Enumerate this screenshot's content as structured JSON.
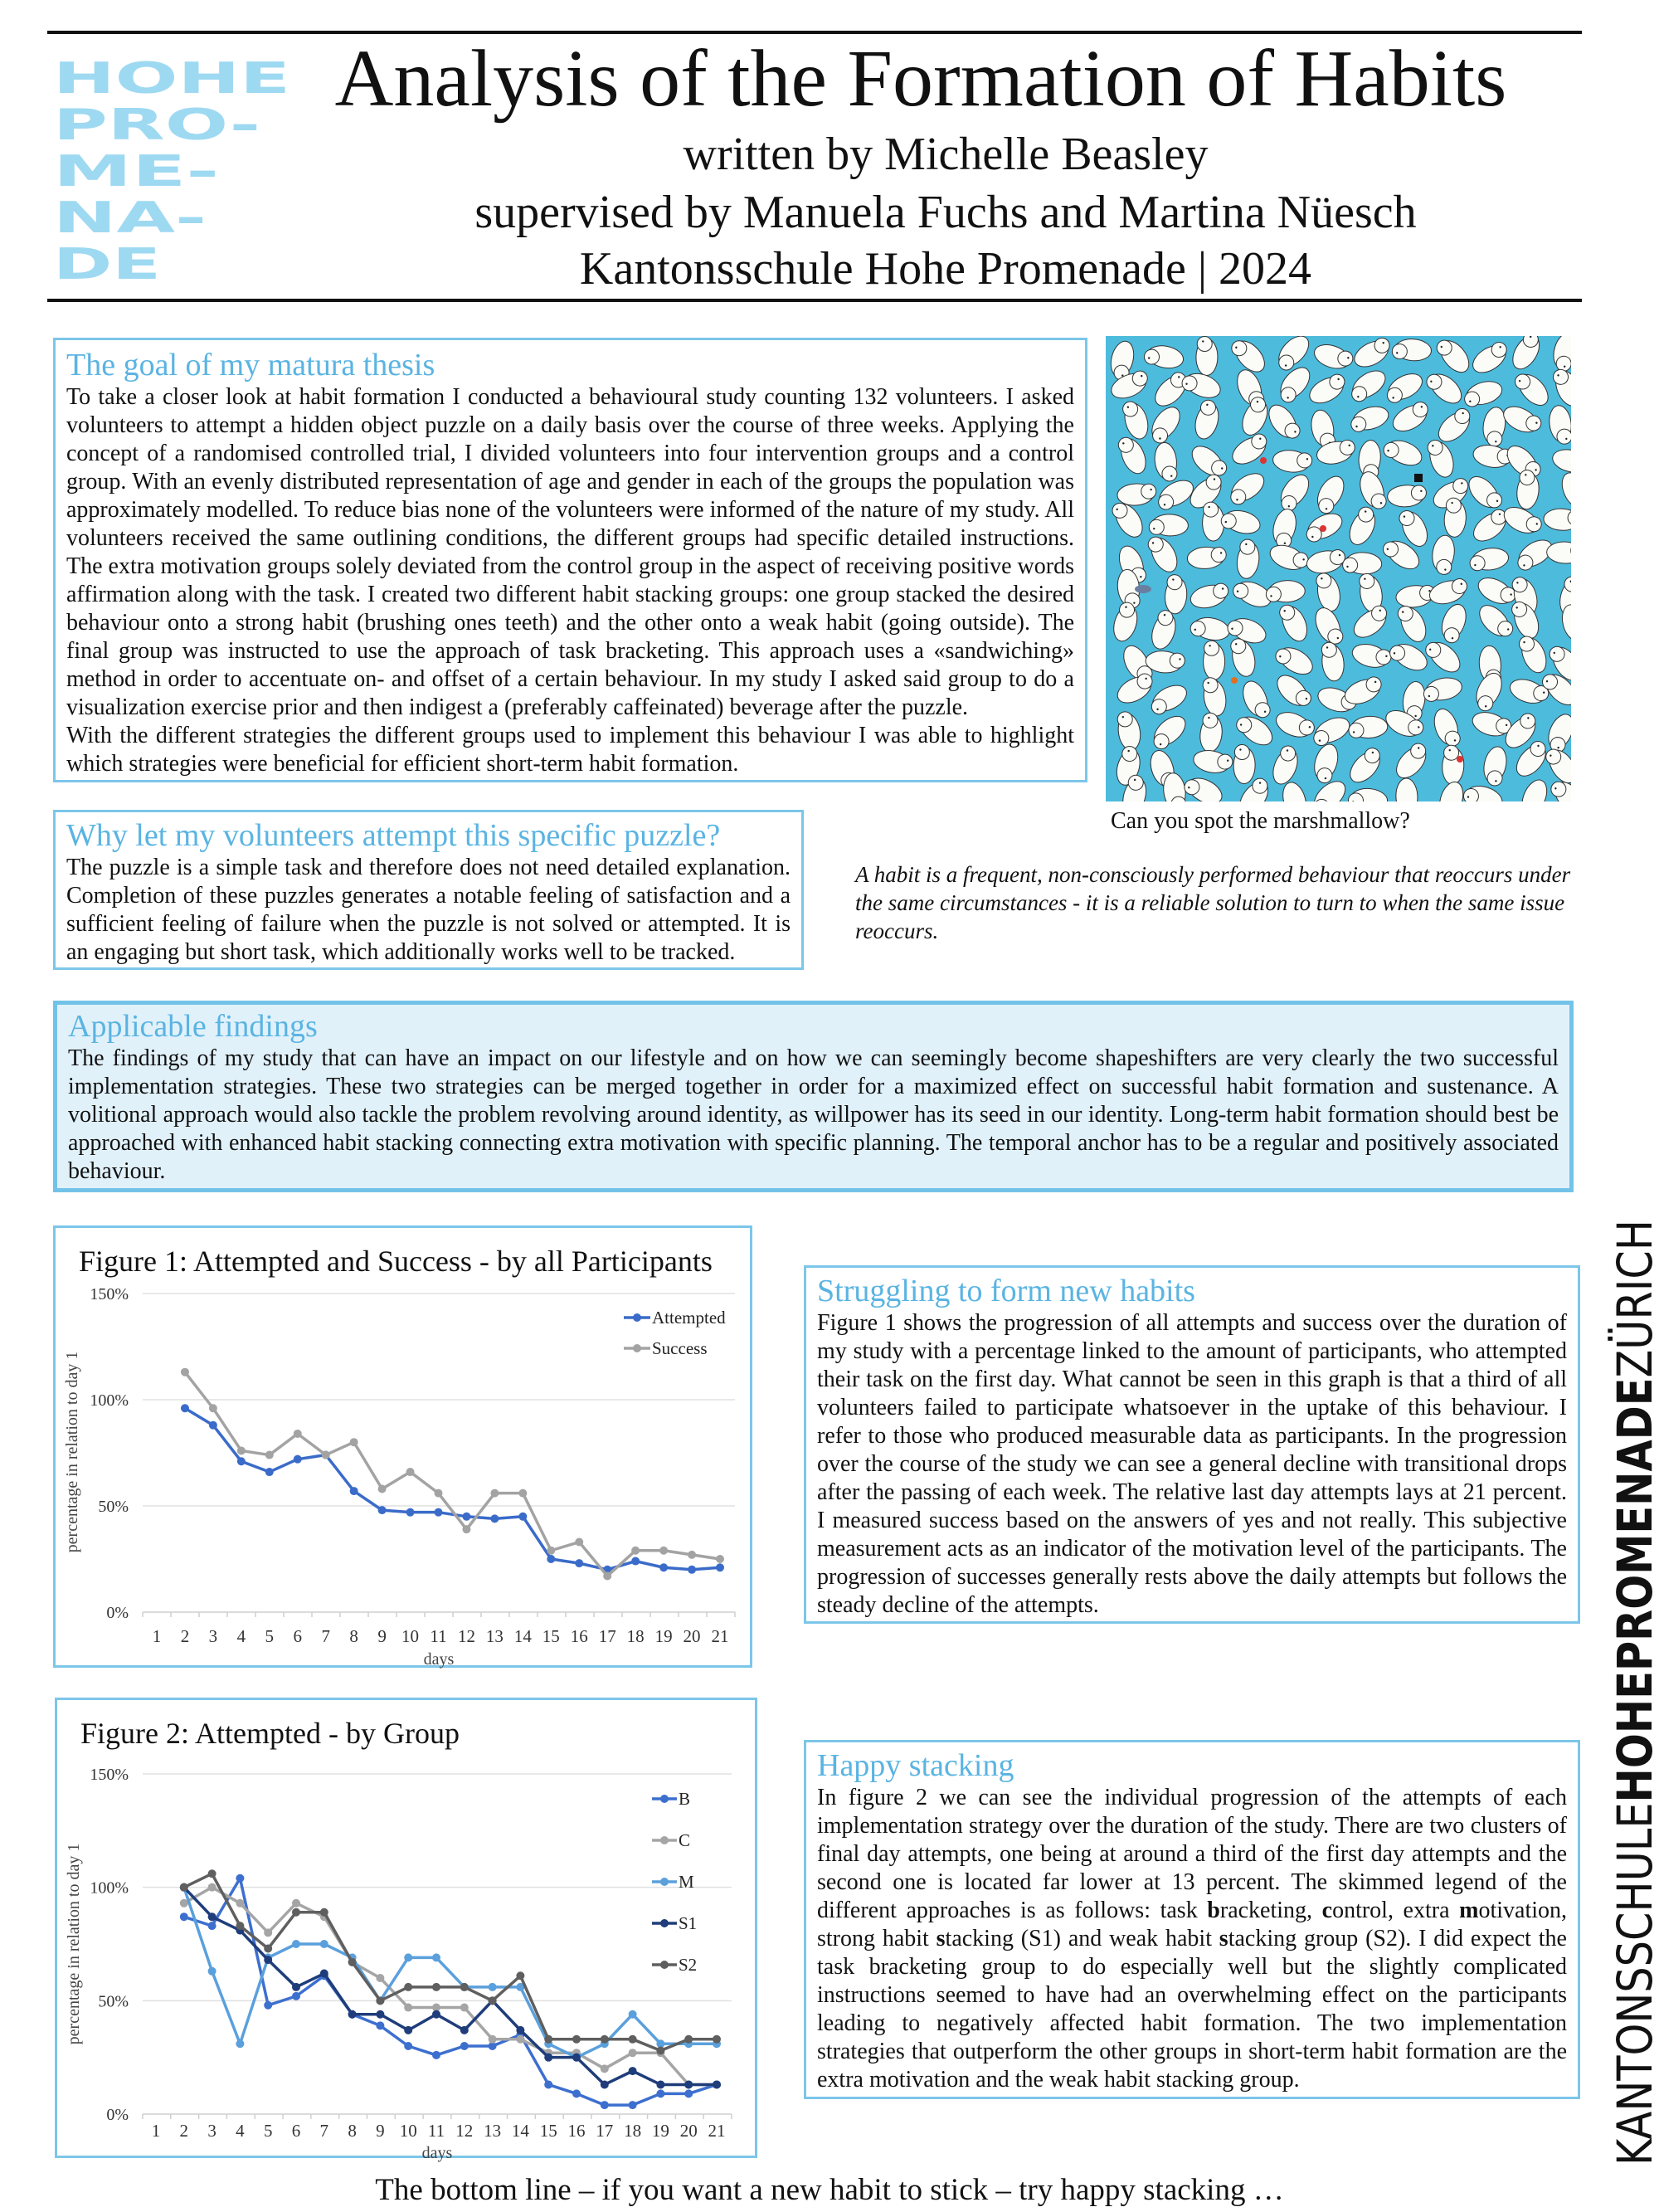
{
  "header": {
    "logo_text": [
      "HOHE",
      "PRO-",
      "ME-",
      "NA-",
      "DE"
    ],
    "title": "Analysis of the Formation of Habits",
    "author": "written by Michelle Beasley",
    "supervisors": "supervised by Manuela Fuchs and Martina Nüesch",
    "school_year": "Kantonsschule Hohe Promenade | 2024"
  },
  "goal": {
    "heading": "The goal of my matura thesis",
    "body": "To take a closer look at habit formation I conducted a behavioural study counting 132 volunteers. I asked volunteers to attempt a hidden object puzzle on a daily basis over the course of three weeks. Applying the concept of a randomised controlled trial, I divided volunteers into four intervention groups and a control group. With an evenly distributed representation of age and gender in each of the groups the population was approximately modelled. To reduce bias none of the volunteers were informed of the nature of my study. All volunteers received the same outlining conditions, the different groups had specific detailed instructions. The extra motivation groups solely deviated from the control group in the aspect of receiving positive words affirmation along with the task. I created two different habit stacking groups: one group stacked the desired behaviour onto a strong habit (brushing ones teeth) and the other onto a weak habit (going outside). The final group was instructed to use the approach of task bracketing. This approach uses a «sandwiching» method in order to accentuate on- and offset of a certain behaviour. In my study I asked said group to do a visualization exercise prior and then indigest a (preferably caffeinated) beverage after the puzzle.",
    "body2": "With the different strategies the different groups used to implement this behaviour I was able to highlight which strategies were beneficial for efficient short-term habit formation."
  },
  "puzzle": {
    "caption": "Can you spot the marshmallow?",
    "background_color": "#4dbbdc"
  },
  "why": {
    "heading": "Why let my volunteers attempt this specific puzzle?",
    "body": "The puzzle is a simple task and therefore does not need detailed explanation. Completion of these puzzles generates a notable feeling of satisfaction and a sufficient feeling of failure when the puzzle is not solved or attempted. It is an engaging but short task, which additionally works well to be tracked."
  },
  "quote": "A habit is a frequent, non-consciously performed behaviour that reoccurs under the same circumstances - it is a reliable solution to turn to when the same issue reoccurs.",
  "findings": {
    "heading": "Applicable findings",
    "body": "The findings of my study that can have an impact on our lifestyle and on how we can seemingly become shapeshifters are very clearly the two successful implementation strategies. These two strategies can be merged together in order for a maximized effect on successful habit formation and sustenance. A volitional approach would also tackle the problem revolving around identity, as willpower has its seed in our identity. Long-term habit formation should best be approached with enhanced habit stacking connecting extra motivation with specific planning. The temporal anchor has to be a regular and positively associated behaviour."
  },
  "struggling": {
    "heading": "Struggling to form new habits",
    "body": "Figure 1 shows the progression of all attempts and success over the duration of my study with a percentage linked to the amount of participants, who attempted their task on the first day. What cannot be seen in this graph is that a third of all volunteers failed to participate whatsoever in the uptake of this behaviour. I refer to those who produced measurable data as participants. In the progression over the course of the study we can see a general decline with transitional drops after the passing of each week. The relative last day attempts lays at 21 percent. I measured success based on the answers of yes and not really. This subjective measurement acts as an indicator of the motivation level of the participants. The progression of successes generally rests above the daily attempts but follows the steady decline of the attempts."
  },
  "happy": {
    "heading": "Happy stacking",
    "parts": [
      "In figure 2 we can see the individual progression of the attempts of each implementation strategy over the duration of the study. There are two clusters of final day attempts, one being at around a third of the first day attempts and the second one is located far lower at 13 percent. The skimmed legend of the different approaches is as follows: task ",
      "b",
      "racketing, ",
      "c",
      "ontrol, extra ",
      "m",
      "otivation, strong habit ",
      "s",
      "tacking (S1) and weak habit ",
      "s",
      "tacking group (S2). I did expect the task bracketing group to do especially well but the slightly complicated instructions seemed to have had an overwhelming effect on the participants leading to negatively affected habit formation. The two implementation strategies that outperform the other groups in short-term habit formation are the extra motivation and the weak habit stacking group."
    ]
  },
  "bottom_line": "The bottom line – if you want a new habit to stick – try happy stacking …",
  "side_text": {
    "light1": "KANTONSSCHULE",
    "bold": "HOHEPROMENADE",
    "light2": "ZÜRICH"
  },
  "colors": {
    "accent": "#5ab4e2",
    "box_border": "#7cc6ea",
    "findings_bg": "#e1f1fa",
    "logo": "#5ec0ea"
  },
  "chart_data": [
    {
      "type": "line",
      "title": "Figure 1: Attempted and Success - by all Participants",
      "xlabel": "days",
      "ylabel": "percentage in relation to day 1",
      "categories": [
        "1",
        "2",
        "3",
        "4",
        "5",
        "6",
        "7",
        "8",
        "9",
        "10",
        "11",
        "12",
        "13",
        "14",
        "15",
        "16",
        "17",
        "18",
        "19",
        "20",
        "21"
      ],
      "yticks": [
        "0%",
        "50%",
        "100%",
        "150%"
      ],
      "ylim": [
        0,
        150
      ],
      "grid": true,
      "legend": "top-right",
      "series": [
        {
          "name": "Attempted",
          "color": "#3a6bc9",
          "values": [
            null,
            96,
            88,
            71,
            66,
            72,
            74,
            57,
            48,
            47,
            47,
            45,
            44,
            45,
            25,
            23,
            20,
            24,
            21,
            20,
            21
          ]
        },
        {
          "name": "Success",
          "color": "#a3a3a3",
          "values": [
            null,
            113,
            96,
            76,
            74,
            84,
            74,
            80,
            58,
            66,
            56,
            39,
            56,
            56,
            29,
            33,
            17,
            29,
            29,
            27,
            25
          ]
        }
      ]
    },
    {
      "type": "line",
      "title": "Figure 2: Attempted - by Group",
      "xlabel": "days",
      "ylabel": "percentage in relation to day 1",
      "categories": [
        "1",
        "2",
        "3",
        "4",
        "5",
        "6",
        "7",
        "8",
        "9",
        "10",
        "11",
        "12",
        "13",
        "14",
        "15",
        "16",
        "17",
        "18",
        "19",
        "20",
        "21"
      ],
      "yticks": [
        "0%",
        "50%",
        "100%",
        "150%"
      ],
      "ylim": [
        0,
        150
      ],
      "grid": true,
      "legend": "right",
      "series": [
        {
          "name": "B",
          "color": "#3d6fcf",
          "values": [
            null,
            87,
            83,
            104,
            48,
            52,
            61,
            44,
            39,
            30,
            26,
            30,
            30,
            35,
            13,
            9,
            4,
            4,
            9,
            9,
            13
          ]
        },
        {
          "name": "C",
          "color": "#a5a5a5",
          "values": [
            null,
            93,
            100,
            93,
            80,
            93,
            87,
            67,
            60,
            47,
            47,
            47,
            33,
            33,
            27,
            27,
            20,
            27,
            27,
            13,
            13
          ]
        },
        {
          "name": "M",
          "color": "#5aa0dc",
          "values": [
            null,
            100,
            63,
            31,
            69,
            75,
            75,
            69,
            50,
            69,
            69,
            56,
            56,
            56,
            31,
            25,
            31,
            44,
            31,
            31,
            31
          ]
        },
        {
          "name": "S1",
          "color": "#1f3d7a",
          "values": [
            null,
            100,
            87,
            81,
            68,
            56,
            62,
            44,
            44,
            37,
            44,
            37,
            50,
            37,
            25,
            25,
            13,
            19,
            13,
            13,
            13
          ]
        },
        {
          "name": "S2",
          "color": "#5f5f5f",
          "values": [
            null,
            100,
            106,
            83,
            73,
            89,
            89,
            67,
            50,
            56,
            56,
            56,
            50,
            61,
            33,
            33,
            33,
            33,
            28,
            33,
            33
          ]
        }
      ]
    }
  ]
}
